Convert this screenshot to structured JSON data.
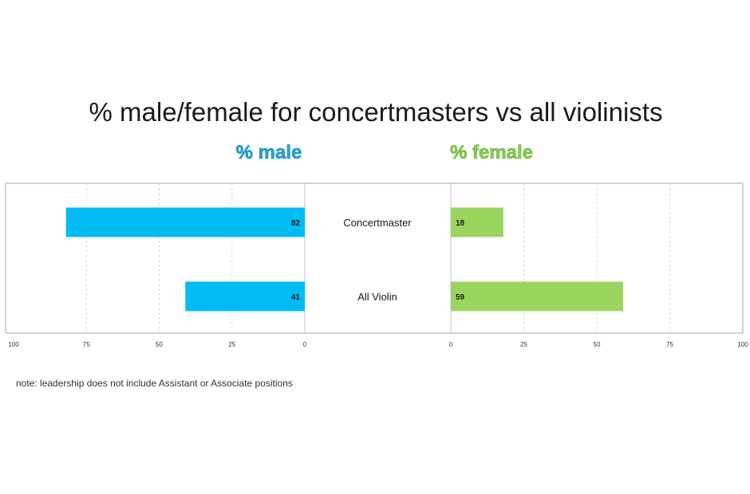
{
  "chart_data": {
    "type": "bar",
    "title": "% male/female for concertmasters vs all violinists",
    "categories": [
      "Concertmaster",
      "All Violin"
    ],
    "series": [
      {
        "name": "% male",
        "values": [
          82,
          41
        ],
        "color": "#00bcf2",
        "side": "left"
      },
      {
        "name": "% female",
        "values": [
          18,
          59
        ],
        "color": "#9bd35f",
        "side": "right"
      }
    ],
    "left_ticks": [
      "100",
      "75",
      "50",
      "25",
      "0"
    ],
    "right_ticks": [
      "0",
      "25",
      "50",
      "75",
      "100"
    ],
    "xlim": [
      0,
      100
    ],
    "grid": true,
    "legend_placement": "top",
    "note": "note: leadership does not include Assistant or Associate positions"
  }
}
